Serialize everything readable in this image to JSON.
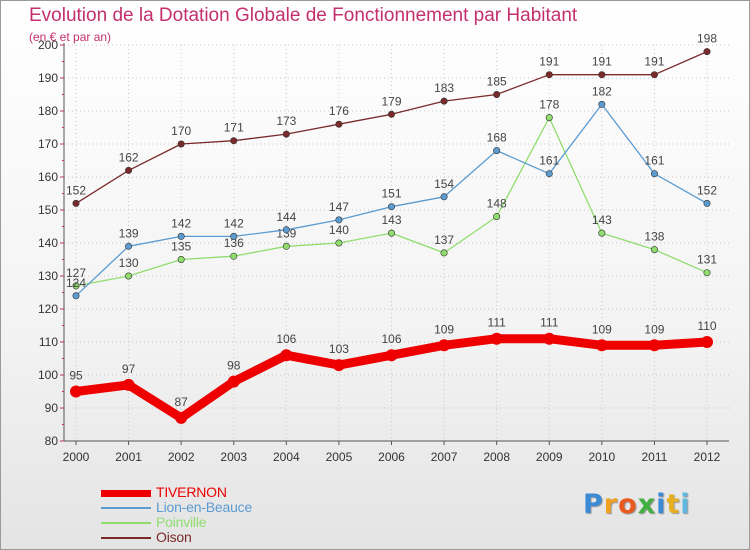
{
  "chart_data": {
    "type": "line",
    "title": "Evolution de la Dotation Globale de Fonctionnement par Habitant",
    "subtitle": "(en € et par an)",
    "xlabel": "",
    "ylabel": "",
    "ylim": [
      80,
      200
    ],
    "yticks": [
      "80",
      "90",
      "100",
      "110",
      "120",
      "130",
      "140",
      "150",
      "160",
      "170",
      "180",
      "190",
      "200"
    ],
    "categories": [
      "2000",
      "2001",
      "2002",
      "2003",
      "2004",
      "2005",
      "2006",
      "2007",
      "2008",
      "2009",
      "2010",
      "2011",
      "2012"
    ],
    "legend_position": "bottom-left",
    "series": [
      {
        "name": "TIVERNON",
        "color": "#ee0000",
        "values": [
          95,
          97,
          87,
          98,
          106,
          103,
          106,
          109,
          111,
          111,
          109,
          109,
          110
        ]
      },
      {
        "name": "Lion-en-Beauce",
        "color": "#5b9bd0",
        "values": [
          124,
          139,
          142,
          142,
          144,
          147,
          151,
          154,
          168,
          161,
          182,
          161,
          152
        ]
      },
      {
        "name": "Poinville",
        "color": "#90dd6e",
        "values": [
          127,
          130,
          135,
          136,
          139,
          140,
          143,
          137,
          148,
          178,
          143,
          138,
          131
        ]
      },
      {
        "name": "Oison",
        "color": "#7a2a2a",
        "values": [
          152,
          162,
          170,
          171,
          173,
          176,
          179,
          183,
          185,
          191,
          191,
          191,
          198
        ]
      }
    ]
  },
  "logo": {
    "letters": [
      "P",
      "r",
      "o",
      "x",
      "i",
      "t",
      "i"
    ],
    "colors": [
      "#3a8ad6",
      "#f0a020",
      "#e85a20",
      "#40b040",
      "#3a8ad6",
      "#e8b020",
      "#60b8e0"
    ]
  }
}
